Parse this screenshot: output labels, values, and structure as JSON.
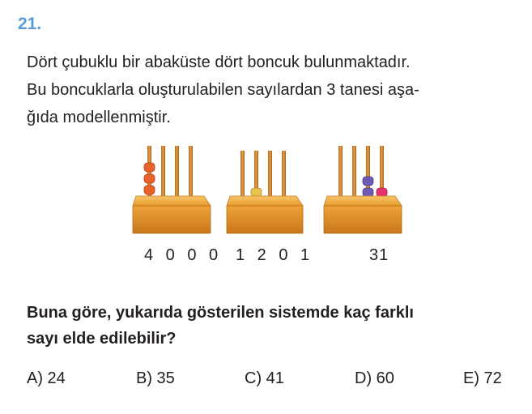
{
  "question_number": "21.",
  "stem_lines": [
    "Dört çubuklu bir abaküste dört boncuk bulunmaktadır.",
    "Bu boncuklarla oluşturulabilen sayılardan 3 tanesi aşa-",
    "ğıda modellenmiştir."
  ],
  "abaci": [
    {
      "label": "4 0 0 0",
      "beads": [
        4,
        0,
        0,
        0
      ]
    },
    {
      "label": "1 2 0 1",
      "beads": [
        1,
        2,
        0,
        1
      ]
    },
    {
      "label": "31",
      "beads": [
        0,
        0,
        3,
        1
      ]
    }
  ],
  "bead_colors": {
    "orange": "#e8622a",
    "yellow": "#e9c14f",
    "teal": "#7fb3a8",
    "pink": "#e2336f",
    "purple": "#6e5bb5"
  },
  "wood_color": "#f0a030",
  "question_lines": [
    "Buna göre, yukarıda gösterilen sistemde kaç farklı",
    "sayı elde edilebilir?"
  ],
  "choices": [
    "A) 24",
    "B) 35",
    "C) 41",
    "D) 60",
    "E) 72"
  ]
}
